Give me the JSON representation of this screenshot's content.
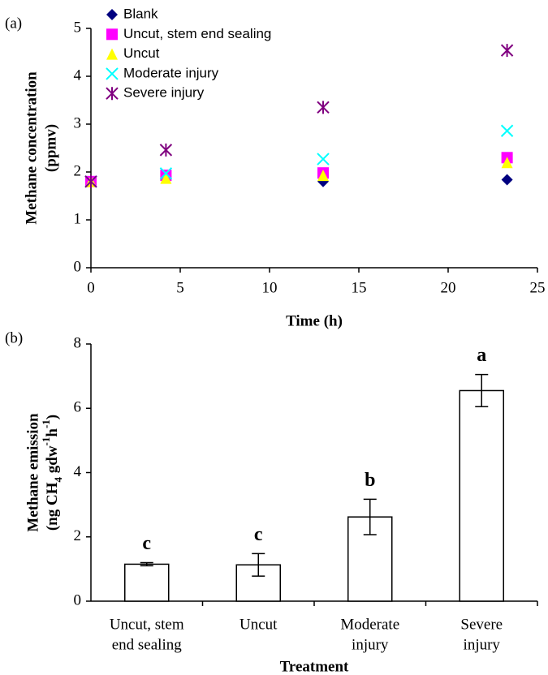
{
  "chart_data": [
    {
      "type": "scatter",
      "panel_label": "(a)",
      "x_label": "Time (h)",
      "y_label": [
        "Methane concentration",
        "(ppmv)"
      ],
      "x": [
        0,
        4.2,
        13,
        23.3
      ],
      "series": [
        {
          "name": "Blank",
          "color": "#000080",
          "marker": "diamond",
          "values": [
            1.8,
            1.9,
            1.8,
            1.84
          ]
        },
        {
          "name": "Uncut, stem end sealing",
          "color": "#ff00ff",
          "marker": "square",
          "values": [
            1.8,
            1.93,
            1.98,
            2.3
          ]
        },
        {
          "name": "Uncut",
          "color": "#ffff00",
          "marker": "triangle",
          "values": [
            1.8,
            1.87,
            1.93,
            2.2
          ]
        },
        {
          "name": "Moderate injury",
          "color": "#00ffff",
          "marker": "x",
          "values": [
            1.8,
            1.97,
            2.27,
            2.86
          ]
        },
        {
          "name": "Severe injury",
          "color": "#800080",
          "marker": "asterisk",
          "values": [
            1.8,
            2.46,
            3.35,
            4.54
          ]
        }
      ],
      "xlim": [
        0,
        25
      ],
      "xticks": [
        0,
        5,
        10,
        15,
        20,
        25
      ],
      "ylim": [
        0,
        5
      ],
      "yticks": [
        0,
        1,
        2,
        3,
        4,
        5
      ]
    },
    {
      "type": "bar",
      "panel_label": "(b)",
      "x_label": "Treatment",
      "y_label": [
        "Methane  emission",
        [
          {
            "text": "(ng CH"
          },
          {
            "text": "4",
            "shift": "sub"
          },
          {
            "text": " gdw"
          },
          {
            "text": "-1",
            "shift": "super"
          },
          {
            "text": "h"
          },
          {
            "text": "-1",
            "shift": "super"
          },
          {
            "text": ")"
          }
        ]
      ],
      "categories": [
        [
          "Uncut, stem",
          "end sealing"
        ],
        [
          "Uncut"
        ],
        [
          "Moderate",
          "injury"
        ],
        [
          "Severe",
          "injury"
        ]
      ],
      "values": [
        1.15,
        1.13,
        2.62,
        6.55
      ],
      "errors": [
        0.05,
        0.35,
        0.55,
        0.5
      ],
      "annotations": [
        "c",
        "c",
        "b",
        "a"
      ],
      "color": "#ffffff",
      "ylim": [
        0,
        8
      ],
      "yticks": [
        0,
        2,
        4,
        6,
        8
      ]
    }
  ]
}
